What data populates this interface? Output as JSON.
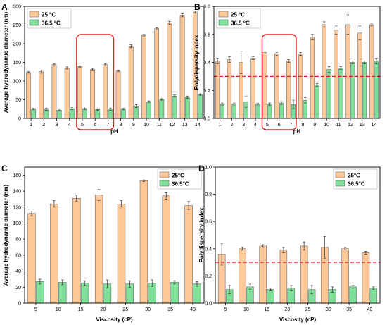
{
  "colors": {
    "orange": "#FFC899",
    "green": "#7FE09A",
    "red": "#E02020",
    "frame": "#000000"
  },
  "chart_data": [
    {
      "panel": "A",
      "type": "bar",
      "xlabel": "pH",
      "ylabel": "Average hydrodynamic diameter (nm)",
      "categories": [
        "1",
        "2",
        "3",
        "4",
        "5",
        "6",
        "7",
        "8",
        "9",
        "10",
        "11",
        "12",
        "13",
        "14"
      ],
      "ylim": [
        0,
        300
      ],
      "yticks": [
        0,
        50,
        100,
        150,
        200,
        250,
        300
      ],
      "legend": "top-left",
      "series": [
        {
          "name": "25 °C",
          "color": "#FFC899",
          "values": [
            123,
            125,
            144,
            135,
            139,
            131,
            144,
            127,
            193,
            222,
            240,
            256,
            276,
            285
          ],
          "errors": [
            2,
            4,
            3,
            3,
            2,
            3,
            3,
            2,
            4,
            3,
            3,
            4,
            4,
            3
          ]
        },
        {
          "name": "36.5 °C",
          "color": "#7FE09A",
          "values": [
            25,
            25,
            22,
            26,
            26,
            24,
            25,
            25,
            33,
            45,
            51,
            60,
            57,
            64
          ],
          "errors": [
            2,
            3,
            3,
            3,
            2,
            2,
            3,
            2,
            4,
            2,
            2,
            3,
            3,
            2
          ]
        }
      ],
      "highlight": [
        "5",
        "7"
      ]
    },
    {
      "panel": "B",
      "type": "bar",
      "xlabel": "pH",
      "ylabel": "Polydispersity index",
      "categories": [
        "1",
        "2",
        "3",
        "4",
        "5",
        "6",
        "7",
        "8",
        "9",
        "10",
        "11",
        "12",
        "13",
        "14"
      ],
      "ylim": [
        0,
        0.8
      ],
      "yticks": [
        0.0,
        0.2,
        0.4,
        0.6,
        0.8
      ],
      "legend": "top-left",
      "series": [
        {
          "name": "25 °C",
          "color": "#FFC899",
          "values": [
            0.41,
            0.42,
            0.4,
            0.43,
            0.47,
            0.46,
            0.41,
            0.46,
            0.58,
            0.67,
            0.63,
            0.67,
            0.61,
            0.67
          ],
          "errors": [
            0.02,
            0.02,
            0.08,
            0.01,
            0.01,
            0.01,
            0.01,
            0.01,
            0.02,
            0.02,
            0.03,
            0.07,
            0.05,
            0.01
          ]
        },
        {
          "name": "36.5 °C",
          "color": "#7FE09A",
          "values": [
            0.1,
            0.1,
            0.12,
            0.1,
            0.1,
            0.11,
            0.1,
            0.13,
            0.24,
            0.35,
            0.36,
            0.4,
            0.4,
            0.41
          ],
          "errors": [
            0.01,
            0.01,
            0.04,
            0.01,
            0.01,
            0.01,
            0.03,
            0.02,
            0.01,
            0.02,
            0.01,
            0.01,
            0.01,
            0.02
          ]
        }
      ],
      "threshold": 0.3,
      "highlight": [
        "5",
        "7"
      ]
    },
    {
      "panel": "C",
      "type": "bar",
      "xlabel": "Viscosity (cP)",
      "ylabel": "Average hydrodynamic diameter (nm)",
      "categories": [
        "5",
        "10",
        "15",
        "20",
        "25",
        "30",
        "35",
        "40"
      ],
      "ylim": [
        0,
        170
      ],
      "yticks": [
        0,
        20,
        40,
        60,
        80,
        100,
        120,
        140,
        160
      ],
      "legend": "top-right",
      "series": [
        {
          "name": "25°C",
          "color": "#FFC899",
          "values": [
            112,
            124,
            131,
            135,
            124,
            153,
            134,
            122
          ],
          "errors": [
            3,
            4,
            4,
            7,
            4,
            1,
            4,
            5
          ]
        },
        {
          "name": "36.5°C",
          "color": "#7FE09A",
          "values": [
            27,
            26,
            25,
            24,
            24,
            25,
            26,
            24
          ],
          "errors": [
            3,
            3,
            3,
            5,
            4,
            4,
            2,
            3
          ]
        }
      ]
    },
    {
      "panel": "D",
      "type": "bar",
      "xlabel": "Viscosity (cP)",
      "ylabel": "Polydispersity index",
      "categories": [
        "5",
        "10",
        "15",
        "20",
        "25",
        "30",
        "35",
        "40"
      ],
      "ylim": [
        0,
        1.0
      ],
      "yticks": [
        0.0,
        0.2,
        0.4,
        0.6,
        0.8,
        1.0
      ],
      "legend": "top-right",
      "series": [
        {
          "name": "25°C",
          "color": "#FFC899",
          "values": [
            0.36,
            0.4,
            0.42,
            0.39,
            0.42,
            0.41,
            0.4,
            0.37
          ],
          "errors": [
            0.08,
            0.01,
            0.01,
            0.02,
            0.03,
            0.08,
            0.01,
            0.01
          ]
        },
        {
          "name": "36.5°C",
          "color": "#7FE09A",
          "values": [
            0.1,
            0.12,
            0.1,
            0.11,
            0.1,
            0.1,
            0.12,
            0.11
          ],
          "errors": [
            0.03,
            0.02,
            0.01,
            0.02,
            0.03,
            0.02,
            0.01,
            0.01
          ]
        }
      ],
      "threshold": 0.3
    }
  ]
}
